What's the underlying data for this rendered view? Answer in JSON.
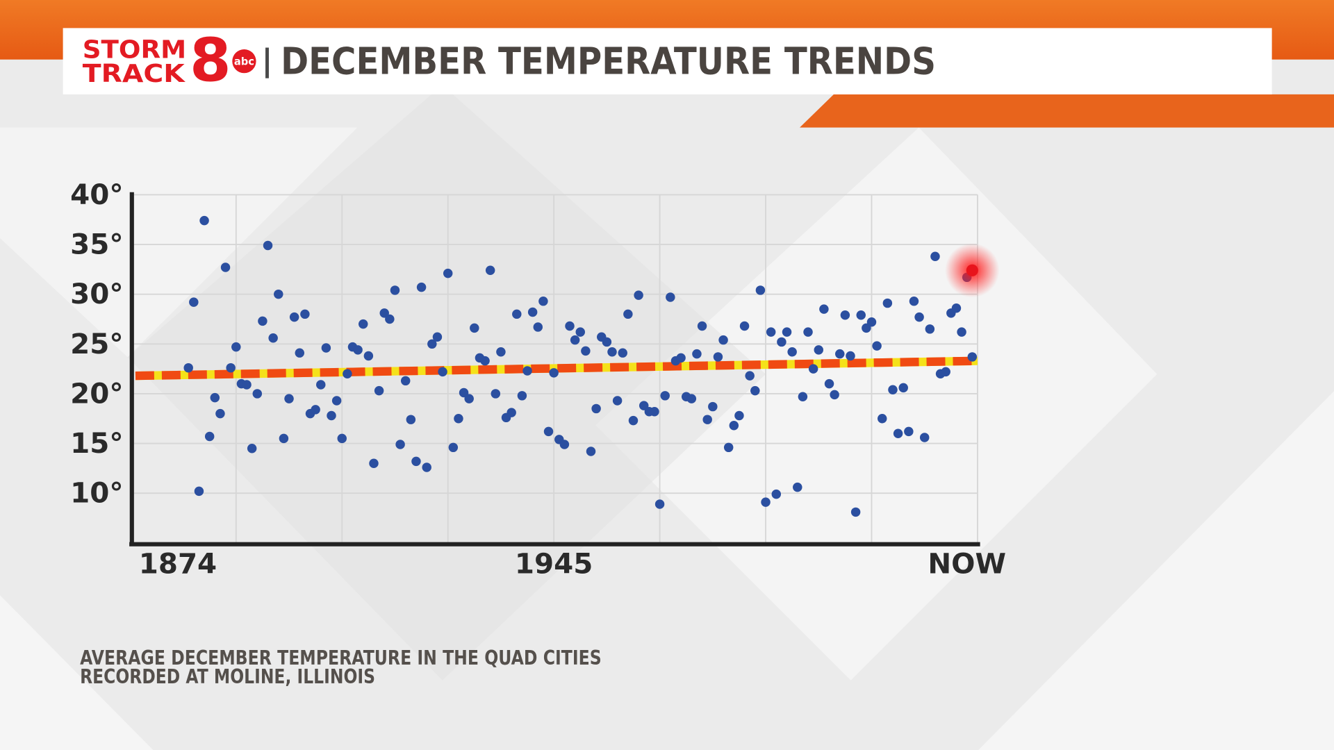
{
  "chart_data": {
    "type": "scatter",
    "brand": {
      "line1": "STORM",
      "line2": "TRACK",
      "number": "8",
      "network": "abc"
    },
    "title": "DECEMBER TEMPERATURE TRENDS",
    "caption": [
      "AVERAGE DECEMBER TEMPERATURE IN THE QUAD CITIES",
      "RECORDED AT MOLINE, ILLINOIS"
    ],
    "xlim": [
      1865,
      2025
    ],
    "xticks": [
      1874,
      1945,
      {
        "value": 2023,
        "label": "NOW"
      }
    ],
    "xgrid": [
      1885,
      1905,
      1925,
      1945,
      1965,
      1985,
      2005,
      2025
    ],
    "ylim": [
      5,
      40
    ],
    "yticks": [
      {
        "value": 10,
        "label": "10°"
      },
      {
        "value": 15,
        "label": "15°"
      },
      {
        "value": 20,
        "label": "20°"
      },
      {
        "value": 25,
        "label": "25°"
      },
      {
        "value": 30,
        "label": "30°"
      },
      {
        "value": 35,
        "label": "35°"
      },
      {
        "value": 40,
        "label": "40°"
      }
    ],
    "grid": true,
    "series": [
      {
        "color": "#2b4fa0",
        "x": [
          1876,
          1877,
          1878,
          1879,
          1880,
          1881,
          1882,
          1883,
          1884,
          1885,
          1886,
          1887,
          1888,
          1889,
          1890,
          1891,
          1892,
          1893,
          1894,
          1895,
          1896,
          1897,
          1898,
          1899,
          1900,
          1901,
          1902,
          1903,
          1904,
          1905,
          1906,
          1907,
          1908,
          1909,
          1910,
          1911,
          1912,
          1913,
          1914,
          1915,
          1916,
          1917,
          1918,
          1919,
          1920,
          1921,
          1922,
          1923,
          1924,
          1925,
          1926,
          1927,
          1928,
          1929,
          1930,
          1931,
          1932,
          1933,
          1934,
          1935,
          1936,
          1937,
          1938,
          1939,
          1940,
          1941,
          1942,
          1943,
          1944,
          1945,
          1946,
          1947,
          1948,
          1949,
          1950,
          1951,
          1952,
          1953,
          1954,
          1955,
          1956,
          1957,
          1958,
          1959,
          1960,
          1961,
          1962,
          1963,
          1964,
          1965,
          1966,
          1967,
          1968,
          1969,
          1970,
          1971,
          1972,
          1973,
          1974,
          1975,
          1976,
          1977,
          1978,
          1979,
          1980,
          1981,
          1982,
          1983,
          1984,
          1985,
          1986,
          1987,
          1988,
          1989,
          1990,
          1991,
          1992,
          1993,
          1994,
          1995,
          1996,
          1997,
          1998,
          1999,
          2000,
          2001,
          2002,
          2003,
          2004,
          2005,
          2006,
          2007,
          2008,
          2009,
          2010,
          2011,
          2012,
          2013,
          2014,
          2015,
          2016,
          2017,
          2018,
          2019,
          2020,
          2021,
          2022,
          2023,
          2024
        ],
        "values": [
          22.6,
          29.2,
          10.2,
          37.4,
          15.7,
          19.6,
          18.0,
          32.7,
          22.6,
          24.7,
          21.0,
          20.9,
          14.5,
          20.0,
          27.3,
          34.9,
          25.6,
          30.0,
          15.5,
          19.5,
          27.7,
          24.1,
          28.0,
          18.0,
          18.4,
          20.9,
          24.6,
          17.8,
          19.3,
          15.5,
          22.0,
          24.7,
          24.4,
          27.0,
          23.8,
          13.0,
          20.3,
          28.1,
          27.5,
          30.4,
          14.9,
          21.3,
          17.4,
          13.2,
          30.7,
          12.6,
          25.0,
          25.7,
          22.2,
          32.1,
          14.6,
          17.5,
          20.1,
          19.5,
          26.6,
          23.6,
          23.3,
          32.4,
          20.0,
          24.2,
          17.6,
          18.1,
          28.0,
          19.8,
          22.3,
          28.2,
          26.7,
          29.3,
          16.2,
          22.1,
          15.4,
          14.9,
          26.8,
          25.4,
          26.2,
          24.3,
          14.2,
          18.5,
          25.7,
          25.2,
          24.2,
          19.3,
          24.1,
          28.0,
          17.3,
          29.9,
          18.8,
          18.2,
          18.2,
          8.9,
          19.8,
          29.7,
          23.3,
          23.6,
          19.7,
          19.5,
          24.0,
          26.8,
          17.4,
          18.7,
          23.7,
          25.4,
          14.6,
          16.8,
          17.8,
          26.8,
          21.8,
          20.3,
          30.4,
          9.1,
          26.2,
          9.9,
          25.2,
          26.2,
          24.2,
          10.6,
          19.7,
          26.2,
          22.5,
          24.4,
          28.5,
          21.0,
          19.9,
          24.0,
          27.9,
          23.8,
          8.1,
          27.9,
          26.6,
          27.2,
          24.8,
          17.5,
          29.1,
          20.4,
          16.0,
          20.6,
          16.2,
          29.3,
          27.7,
          15.6,
          26.5,
          33.8,
          22.0,
          22.2,
          28.1,
          28.6,
          26.2,
          31.7,
          23.7
        ]
      },
      {
        "color": "#e8141c",
        "x": [
          2024
        ],
        "values": [
          32.4
        ]
      }
    ],
    "trendline": {
      "color": "#f04a12",
      "x": [
        1866,
        2025
      ],
      "values": [
        21.8,
        23.3
      ]
    }
  }
}
